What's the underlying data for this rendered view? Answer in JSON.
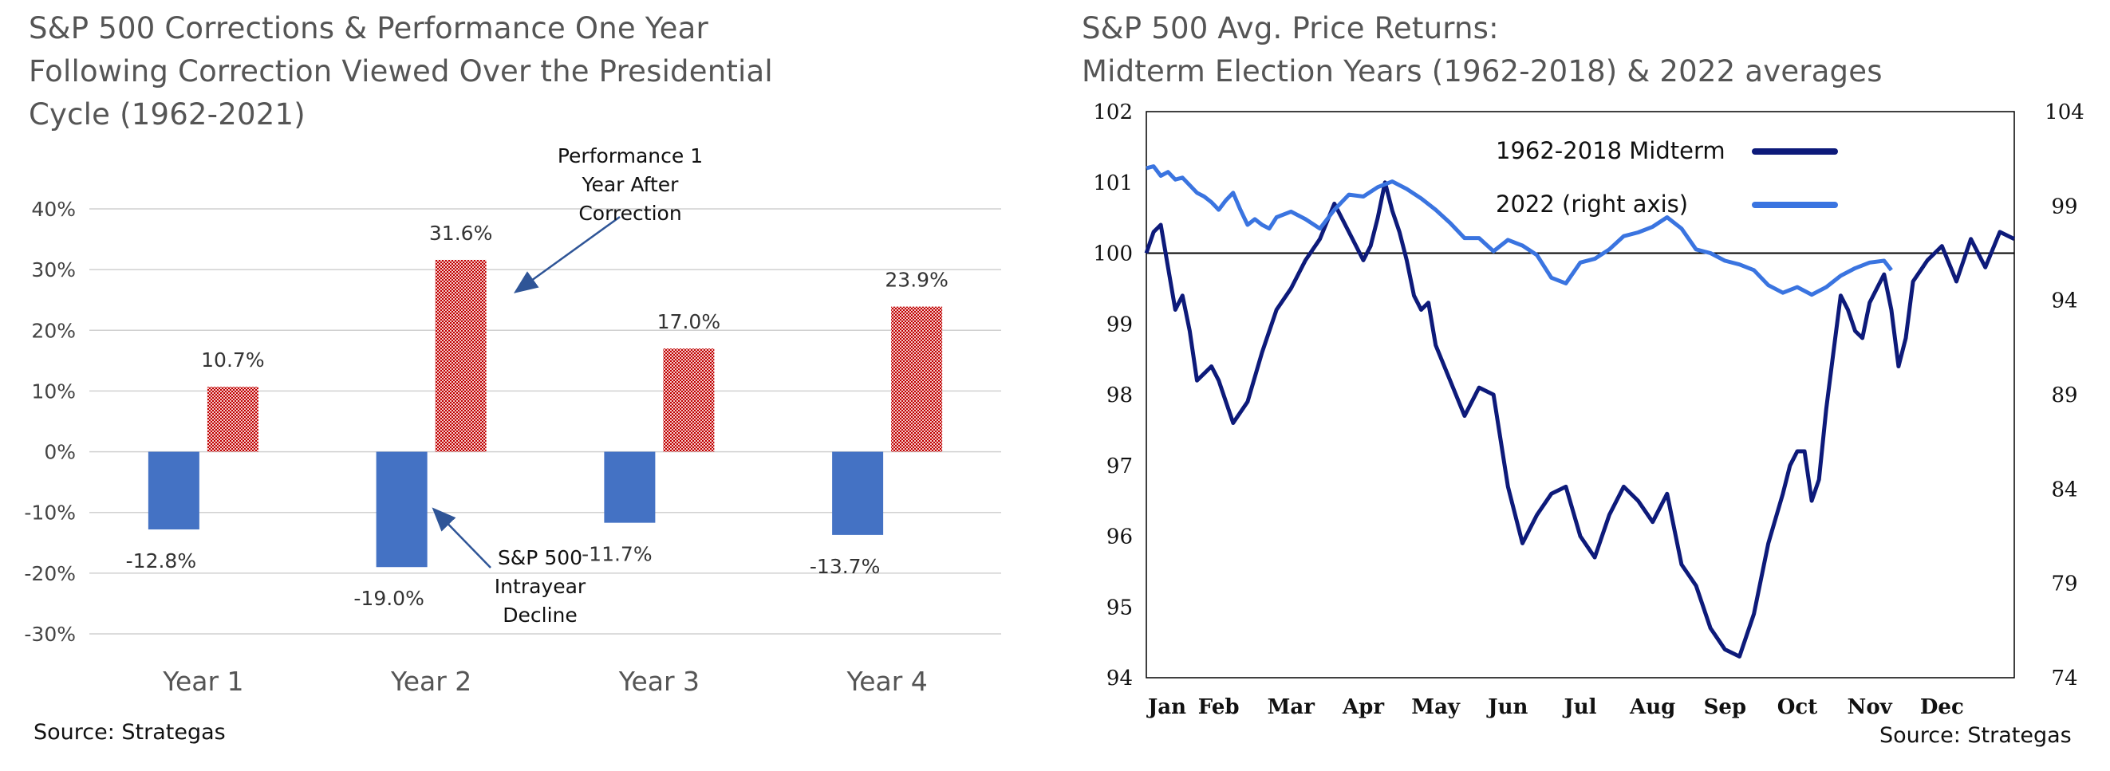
{
  "left": {
    "title_lines": [
      "S&P 500 Corrections & Performance One Year",
      "Following Correction Viewed Over the Presidential",
      "Cycle (1962-2021)"
    ],
    "source": "Source: Strategas",
    "annotations": {
      "performance": [
        "Performance 1",
        "Year After",
        "Correction"
      ],
      "decline": [
        "S&P 500",
        "Intrayear",
        "Decline"
      ]
    }
  },
  "right": {
    "title_lines": [
      "S&P 500 Avg. Price Returns:",
      "Midterm Election Years (1962-2018) & 2022 averages"
    ],
    "source": "Source: Strategas"
  },
  "colors": {
    "decline_bar": "#4472c4",
    "performance_bar": "#c00000",
    "midterm_line": "#0d1a7a",
    "y2022_line": "#3a74e0",
    "grid": "#d0d0d0",
    "title": "#555555"
  },
  "chart_data": [
    {
      "type": "bar",
      "categories": [
        "Year 1",
        "Year 2",
        "Year 3",
        "Year 4"
      ],
      "series": [
        {
          "name": "S&P 500 Intrayear Decline",
          "values": [
            -12.8,
            -19.0,
            -11.7,
            -13.7
          ],
          "labels": [
            "-12.8%",
            "-19.0%",
            "-11.7%",
            "-13.7%"
          ]
        },
        {
          "name": "Performance 1 Year After Correction",
          "values": [
            10.7,
            31.6,
            17.0,
            23.9
          ],
          "labels": [
            "10.7%",
            "31.6%",
            "17.0%",
            "23.9%"
          ]
        }
      ],
      "ylim": [
        -30,
        40
      ],
      "yticks": [
        40,
        30,
        20,
        10,
        0,
        -10,
        -20,
        -30
      ],
      "ytick_labels": [
        "40%",
        "30%",
        "20%",
        "10%",
        "0%",
        "-10%",
        "-20%",
        "-30%"
      ],
      "grid": true
    },
    {
      "type": "line",
      "x_ticks": [
        "Jan",
        "Feb",
        "Mar",
        "Apr",
        "May",
        "Jun",
        "Jul",
        "Aug",
        "Sep",
        "Oct",
        "Nov",
        "Dec"
      ],
      "ylim_left": [
        94,
        102
      ],
      "yticks_left": [
        102,
        101,
        100,
        99,
        98,
        97,
        96,
        95,
        94
      ],
      "ylim_right": [
        74,
        104
      ],
      "yticks_right": [
        104,
        99,
        94,
        89,
        84,
        79,
        74
      ],
      "reference_line": 100,
      "legend": [
        "1962-2018 Midterm",
        "2022 (right axis)"
      ],
      "series": [
        {
          "name": "1962-2018 Midterm",
          "axis": "left",
          "x": [
            0,
            0.1,
            0.2,
            0.3,
            0.4,
            0.5,
            0.6,
            0.7,
            0.8,
            0.9,
            1.0,
            1.2,
            1.4,
            1.6,
            1.8,
            2.0,
            2.2,
            2.4,
            2.6,
            2.8,
            3.0,
            3.1,
            3.2,
            3.3,
            3.4,
            3.5,
            3.6,
            3.7,
            3.8,
            3.9,
            4.0,
            4.2,
            4.4,
            4.6,
            4.8,
            5.0,
            5.2,
            5.4,
            5.6,
            5.8,
            6.0,
            6.2,
            6.4,
            6.6,
            6.8,
            7.0,
            7.2,
            7.4,
            7.6,
            7.8,
            8.0,
            8.2,
            8.4,
            8.6,
            8.8,
            8.9,
            9.0,
            9.1,
            9.2,
            9.3,
            9.4,
            9.5,
            9.6,
            9.7,
            9.8,
            9.9,
            10.0,
            10.1,
            10.2,
            10.3,
            10.4,
            10.5,
            10.6,
            10.8,
            11.0,
            11.2,
            11.4,
            11.6,
            11.8,
            12.0
          ],
          "values": [
            100.0,
            100.3,
            100.4,
            99.8,
            99.2,
            99.4,
            98.9,
            98.2,
            98.3,
            98.4,
            98.2,
            97.6,
            97.9,
            98.6,
            99.2,
            99.5,
            99.9,
            100.2,
            100.7,
            100.3,
            99.9,
            100.1,
            100.5,
            101.0,
            100.6,
            100.3,
            99.9,
            99.4,
            99.2,
            99.3,
            98.7,
            98.2,
            97.7,
            98.1,
            98.0,
            96.7,
            95.9,
            96.3,
            96.6,
            96.7,
            96.0,
            95.7,
            96.3,
            96.7,
            96.5,
            96.2,
            96.6,
            95.6,
            95.3,
            94.7,
            94.4,
            94.3,
            94.9,
            95.9,
            96.6,
            97.0,
            97.2,
            97.2,
            96.5,
            96.8,
            97.8,
            98.6,
            99.4,
            99.2,
            98.9,
            98.8,
            99.3,
            99.5,
            99.7,
            99.2,
            98.4,
            98.8,
            99.6,
            99.9,
            100.1,
            99.6,
            100.2,
            99.8,
            100.3,
            100.2
          ]
        },
        {
          "name": "2022 (right axis)",
          "axis": "right",
          "x": [
            0,
            0.1,
            0.2,
            0.3,
            0.4,
            0.5,
            0.6,
            0.7,
            0.8,
            0.9,
            1.0,
            1.1,
            1.2,
            1.3,
            1.4,
            1.5,
            1.6,
            1.7,
            1.8,
            2.0,
            2.2,
            2.4,
            2.6,
            2.8,
            3.0,
            3.2,
            3.4,
            3.6,
            3.8,
            4.0,
            4.2,
            4.4,
            4.6,
            4.8,
            5.0,
            5.2,
            5.4,
            5.6,
            5.8,
            6.0,
            6.2,
            6.4,
            6.6,
            6.8,
            7.0,
            7.2,
            7.4,
            7.6,
            7.8,
            8.0,
            8.2,
            8.4,
            8.6,
            8.8,
            9.0,
            9.2,
            9.4,
            9.6,
            9.8,
            10.0,
            10.2,
            10.3
          ],
          "values": [
            101.0,
            101.1,
            100.6,
            100.8,
            100.4,
            100.5,
            100.1,
            99.7,
            99.5,
            99.2,
            98.8,
            99.3,
            99.7,
            98.8,
            98.0,
            98.3,
            98.0,
            97.8,
            98.4,
            98.7,
            98.3,
            97.8,
            98.8,
            99.6,
            99.5,
            100.0,
            100.3,
            99.9,
            99.4,
            98.8,
            98.1,
            97.3,
            97.3,
            96.6,
            97.2,
            96.9,
            96.4,
            95.2,
            94.9,
            96.0,
            96.2,
            96.7,
            97.4,
            97.6,
            97.9,
            98.4,
            97.8,
            96.7,
            96.5,
            96.1,
            95.9,
            95.6,
            94.8,
            94.4,
            94.7,
            94.3,
            94.7,
            95.3,
            95.7,
            96.0,
            96.1,
            95.6
          ]
        }
      ]
    }
  ]
}
